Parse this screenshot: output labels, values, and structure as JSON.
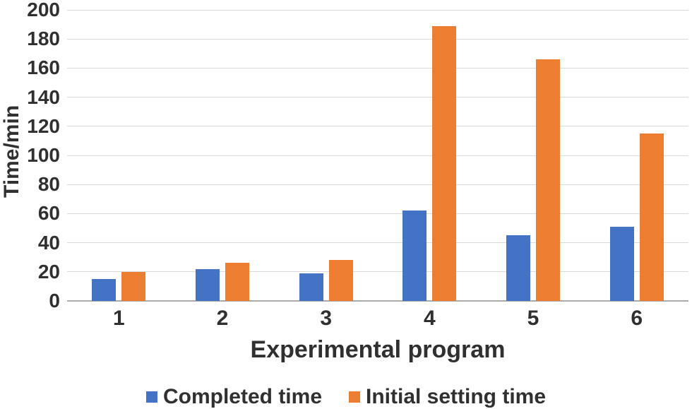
{
  "chart_data": {
    "type": "bar",
    "title": "",
    "xlabel": "Experimental program",
    "ylabel": "Time/min",
    "categories": [
      "1",
      "2",
      "3",
      "4",
      "5",
      "6"
    ],
    "series": [
      {
        "name": "Completed time",
        "color": "#4472C4",
        "values": [
          15,
          22,
          19,
          62,
          45,
          51
        ]
      },
      {
        "name": "Initial setting time",
        "color": "#ED7D31",
        "values": [
          20,
          26,
          28,
          189,
          166,
          115
        ]
      }
    ],
    "ylim": [
      0,
      200
    ],
    "ytick_step": 20,
    "yticks": [
      0,
      20,
      40,
      60,
      80,
      100,
      120,
      140,
      160,
      180,
      200
    ],
    "grid": true,
    "legend_position": "bottom"
  },
  "colors": {
    "text": "#303030",
    "gridline": "#d9d9d9",
    "axis_line": "#ababab",
    "background": "#ffffff"
  }
}
